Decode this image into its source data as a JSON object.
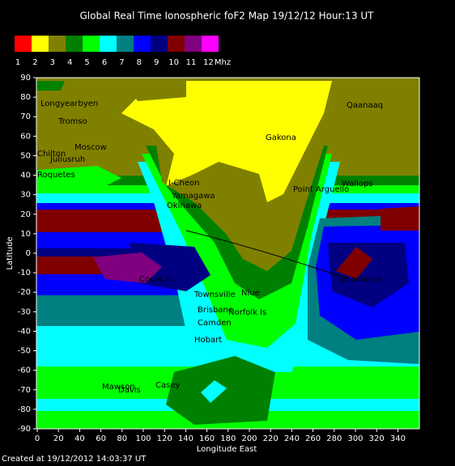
{
  "header": {
    "title": "Global Real Time Ionospheric foF2 Map  19/12/12 Hour:13 UT"
  },
  "legend": {
    "colors": [
      "#ff0000",
      "#ffff00",
      "#808000",
      "#008000",
      "#00ff00",
      "#00ffff",
      "#008080",
      "#0000ff",
      "#000080",
      "#800000",
      "#800080",
      "#ff00ff"
    ],
    "labels": [
      1,
      2,
      3,
      4,
      5,
      6,
      7,
      8,
      9,
      10,
      11,
      12
    ],
    "unit": "Mhz"
  },
  "axes": {
    "y_label": "Latitude",
    "yticks": [
      90,
      80,
      70,
      60,
      50,
      40,
      30,
      20,
      10,
      0,
      -10,
      -20,
      -30,
      -40,
      -50,
      -60,
      -70,
      -80,
      -90
    ],
    "x_label": "Longitude East",
    "xticks": [
      0,
      20,
      40,
      60,
      80,
      100,
      120,
      140,
      160,
      180,
      200,
      220,
      240,
      260,
      280,
      300,
      320,
      340
    ]
  },
  "stations": [
    "Longyearbyen",
    "Tromso",
    "Moscow",
    "Chilton",
    "Juliusruh",
    "Roquetes",
    "Gakona",
    "Qaanaaq",
    "Wallops",
    "Point Arguello",
    "I-Cheon",
    "Yamagawa",
    "Okinawa",
    "Cocos Is",
    "Townsville",
    "Niue",
    "Brisbane",
    "Norfolk Is",
    "Camden",
    "Hobart",
    "Jicamarca",
    "Mawson",
    "Davis",
    "Casey"
  ],
  "footer": "Created at 19/12/2012 14:03:37 UT"
}
